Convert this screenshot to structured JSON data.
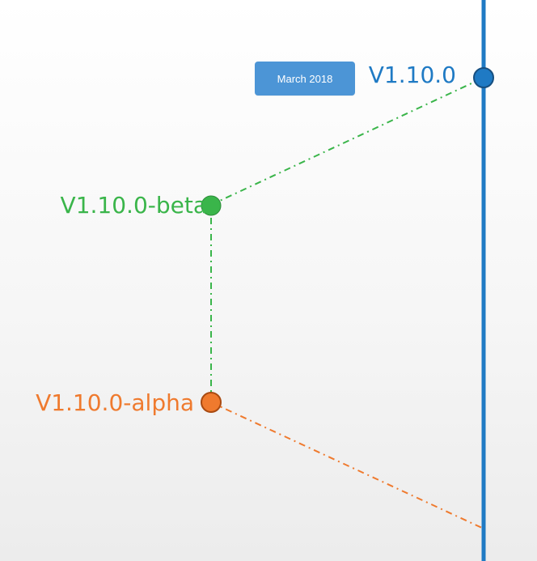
{
  "timeline": {
    "versions": [
      {
        "key": "v110",
        "label": "V1.10.0",
        "color": "#1f7ac4"
      },
      {
        "key": "beta",
        "label": "V1.10.0-beta",
        "color": "#3ab54a"
      },
      {
        "key": "alpha",
        "label": "V1.10.0-alpha",
        "color": "#ef7a2e"
      }
    ],
    "release_date": "March 2018",
    "badge_color": "#4c95d6",
    "mainline_color": "#1f7ac4"
  }
}
